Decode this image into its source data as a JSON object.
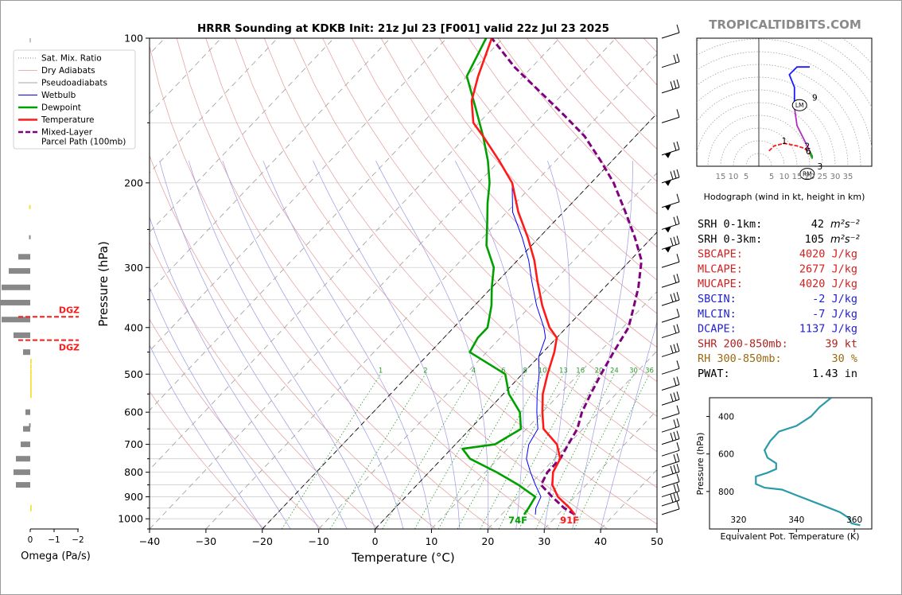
{
  "site": "TROPICALTIDBITS.COM",
  "chart_data": [
    {
      "type": "line",
      "title": "HRRR Sounding at KDKB Init: 21z Jul 23 [F001] valid 22z Jul 23 2025",
      "xlabel": "Temperature (°C)",
      "ylabel": "Pressure (hPa)",
      "xlim": [
        -40,
        50
      ],
      "ylim": [
        1050,
        100
      ],
      "x_ticks": [
        "−40",
        "−30",
        "−20",
        "−10",
        "0",
        "10",
        "20",
        "30",
        "40",
        "50"
      ],
      "y_ticks": [
        "100",
        "200",
        "300",
        "400",
        "500",
        "600",
        "700",
        "800",
        "900",
        "1000"
      ],
      "log_scale_y": true,
      "skew": true,
      "legend": [
        "Sat. Mix. Ratio",
        "Dry Adiabats",
        "Pseudoadiabats",
        "Wetbulb",
        "Dewpoint",
        "Temperature",
        "Mixed-Layer\nParcel Path (100mb)"
      ],
      "legend_position": "top-left",
      "mixing_ratio_labels": [
        "1",
        "2",
        "4",
        "6",
        "8",
        "10",
        "13",
        "16",
        "20",
        "24",
        "30",
        "36"
      ],
      "surface_labels": {
        "dewpoint": "74F",
        "temperature": "91F"
      },
      "colors": {
        "temperature": "#ff1a1a",
        "dewpoint": "#00a000",
        "wetbulb": "#0000ff",
        "parcel": "#800080"
      },
      "series": [
        {
          "name": "Temperature",
          "points": [
            [
              33,
              980
            ],
            [
              31,
              950
            ],
            [
              27,
              900
            ],
            [
              24,
              850
            ],
            [
              22,
              800
            ],
            [
              21,
              750
            ],
            [
              18,
              700
            ],
            [
              13,
              650
            ],
            [
              10,
              600
            ],
            [
              7,
              550
            ],
            [
              4.5,
              500
            ],
            [
              2,
              450
            ],
            [
              0,
              420
            ],
            [
              -3,
              400
            ],
            [
              -8,
              360
            ],
            [
              -13,
              320
            ],
            [
              -17,
              290
            ],
            [
              -22,
              260
            ],
            [
              -28,
              230
            ],
            [
              -34,
              200
            ],
            [
              -40,
              180
            ],
            [
              -47,
              160
            ],
            [
              -51,
              150
            ],
            [
              -55,
              135
            ],
            [
              -58,
              120
            ],
            [
              -62,
              100
            ]
          ]
        },
        {
          "name": "Dewpoint",
          "points": [
            [
              24,
              980
            ],
            [
              23.7,
              950
            ],
            [
              23,
              900
            ],
            [
              18,
              850
            ],
            [
              12,
              800
            ],
            [
              5,
              750
            ],
            [
              2,
              715
            ],
            [
              7,
              700
            ],
            [
              9,
              650
            ],
            [
              6,
              600
            ],
            [
              1,
              550
            ],
            [
              -3,
              500
            ],
            [
              -13,
              450
            ],
            [
              -14,
              420
            ],
            [
              -14,
              400
            ],
            [
              -17,
              360
            ],
            [
              -20,
              330
            ],
            [
              -23,
              300
            ],
            [
              -28,
              270
            ],
            [
              -32,
              240
            ],
            [
              -35,
              220
            ],
            [
              -38,
              200
            ],
            [
              -42,
              180
            ],
            [
              -47,
              160
            ],
            [
              -53,
              140
            ],
            [
              -60,
              120
            ],
            [
              -63,
              100
            ]
          ]
        },
        {
          "name": "Wetbulb",
          "points": [
            [
              26,
              980
            ],
            [
              25,
              950
            ],
            [
              24,
              900
            ],
            [
              21,
              850
            ],
            [
              18,
              800
            ],
            [
              15,
              750
            ],
            [
              13,
              700
            ],
            [
              12,
              650
            ],
            [
              9,
              600
            ],
            [
              6,
              550
            ],
            [
              3,
              500
            ],
            [
              0,
              460
            ],
            [
              -2,
              420
            ],
            [
              -4,
              400
            ],
            [
              -9,
              360
            ],
            [
              -14,
              320
            ],
            [
              -18,
              290
            ],
            [
              -23,
              260
            ],
            [
              -29,
              230
            ],
            [
              -34,
              200
            ],
            [
              -40,
              180
            ]
          ]
        },
        {
          "name": "Mixed-Layer\nParcel Path (100mb)",
          "points": [
            [
              33,
              980
            ],
            [
              30,
              950
            ],
            [
              26,
              900
            ],
            [
              22,
              850
            ],
            [
              21,
              800
            ],
            [
              21,
              750
            ],
            [
              20,
              700
            ],
            [
              19,
              650
            ],
            [
              17,
              600
            ],
            [
              15.5,
              550
            ],
            [
              14,
              500
            ],
            [
              12.5,
              450
            ],
            [
              11,
              400
            ],
            [
              9,
              370
            ],
            [
              6,
              330
            ],
            [
              2,
              290
            ],
            [
              -3,
              260
            ],
            [
              -9,
              230
            ],
            [
              -16,
              200
            ],
            [
              -22,
              180
            ],
            [
              -29,
              160
            ],
            [
              -36,
              145
            ],
            [
              -44,
              130
            ],
            [
              -53,
              115
            ],
            [
              -62,
              100
            ]
          ]
        }
      ],
      "wind_levels_hpa": [
        "100",
        "115",
        "130",
        "150",
        "175",
        "200",
        "225",
        "250",
        "275",
        "300",
        "330",
        "360",
        "390",
        "420",
        "460",
        "500",
        "540",
        "580",
        "620",
        "660",
        "700",
        "740",
        "780",
        "820",
        "860",
        "900",
        "940",
        "980"
      ]
    },
    {
      "type": "line",
      "title": "",
      "xlabel": "Omega (Pa/s)",
      "ylabel": "",
      "x_ticks": [
        "0",
        "−1",
        "−2"
      ],
      "annotations": [
        "DGZ",
        "DGZ"
      ],
      "dgz_levels_hpa": [
        "380",
        "425"
      ],
      "bars": [
        {
          "p": 285,
          "omega": -0.5
        },
        {
          "p": 305,
          "omega": -0.9
        },
        {
          "p": 330,
          "omega": -1.2
        },
        {
          "p": 355,
          "omega": -1.5
        },
        {
          "p": 385,
          "omega": -1.2
        },
        {
          "p": 415,
          "omega": -0.7
        },
        {
          "p": 450,
          "omega": -0.3
        },
        {
          "p": 600,
          "omega": -0.2
        },
        {
          "p": 650,
          "omega": -0.3
        },
        {
          "p": 700,
          "omega": -0.4
        },
        {
          "p": 750,
          "omega": -0.6
        },
        {
          "p": 800,
          "omega": -0.7
        },
        {
          "p": 850,
          "omega": -0.6
        }
      ]
    },
    {
      "type": "line",
      "title": "Hodograph (wind in kt, height in km)",
      "x_ticks": [
        "15",
        "10",
        "5",
        "5",
        "10",
        "15",
        "20",
        "25",
        "30",
        "35"
      ],
      "labels": [
        "1",
        "2",
        "3",
        "6",
        "9",
        "LM",
        "RM"
      ],
      "points": [
        [
          4,
          -7
        ],
        [
          6,
          -5
        ],
        [
          10,
          -4
        ],
        [
          15,
          -5
        ],
        [
          18,
          -6
        ],
        [
          20,
          -8
        ],
        [
          21,
          -10
        ],
        [
          21,
          -9
        ],
        [
          20,
          -7
        ],
        [
          17,
          -1
        ],
        [
          15,
          3
        ],
        [
          14,
          10
        ],
        [
          14,
          18
        ],
        [
          12,
          23
        ],
        [
          15,
          26
        ],
        [
          20,
          26
        ]
      ]
    },
    {
      "type": "line",
      "title": "",
      "xlabel": "Equivalent Pot. Temperature (K)",
      "ylabel": "Pressure (hPa)",
      "x_ticks": [
        "320",
        "340",
        "360"
      ],
      "y_ticks": [
        "400",
        "600",
        "800"
      ],
      "series": [
        {
          "points": [
            [
              362,
              980
            ],
            [
              359,
              970
            ],
            [
              358,
              940
            ],
            [
              355,
              910
            ],
            [
              350,
              880
            ],
            [
              340,
              820
            ],
            [
              335,
              790
            ],
            [
              329,
              780
            ],
            [
              326,
              760
            ],
            [
              326,
              720
            ],
            [
              330,
              700
            ],
            [
              333,
              680
            ],
            [
              333,
              650
            ],
            [
              330,
              620
            ],
            [
              329,
              580
            ],
            [
              331,
              530
            ],
            [
              334,
              480
            ],
            [
              340,
              450
            ],
            [
              345,
              400
            ],
            [
              348,
              350
            ],
            [
              352,
              300
            ]
          ]
        }
      ]
    }
  ],
  "indices": [
    {
      "label": "SRH 0-1km:",
      "value": "42",
      "unit": "m²s⁻²",
      "color": "#000000"
    },
    {
      "label": "SRH 0-3km:",
      "value": "105",
      "unit": "m²s⁻²",
      "color": "#000000"
    },
    {
      "label": "SBCAPE:",
      "value": "4020 J/kg",
      "unit": "",
      "color": "#d22020"
    },
    {
      "label": "MLCAPE:",
      "value": "2677 J/kg",
      "unit": "",
      "color": "#d22020"
    },
    {
      "label": "MUCAPE:",
      "value": "4020 J/kg",
      "unit": "",
      "color": "#d22020"
    },
    {
      "label": "SBCIN:",
      "value": "-2 J/kg",
      "unit": "",
      "color": "#2020d0"
    },
    {
      "label": "MLCIN:",
      "value": "-7 J/kg",
      "unit": "",
      "color": "#2020d0"
    },
    {
      "label": "DCAPE:",
      "value": "1137 J/kg",
      "unit": "",
      "color": "#2020d0"
    },
    {
      "label": "SHR 200-850mb:",
      "value": "39 kt",
      "unit": "",
      "color": "#b02020"
    },
    {
      "label": "RH 300-850mb:",
      "value": "30 %",
      "unit": "",
      "color": "#9a6a10"
    },
    {
      "label": "PWAT:",
      "value": "1.43 in",
      "unit": "",
      "color": "#000000"
    }
  ]
}
